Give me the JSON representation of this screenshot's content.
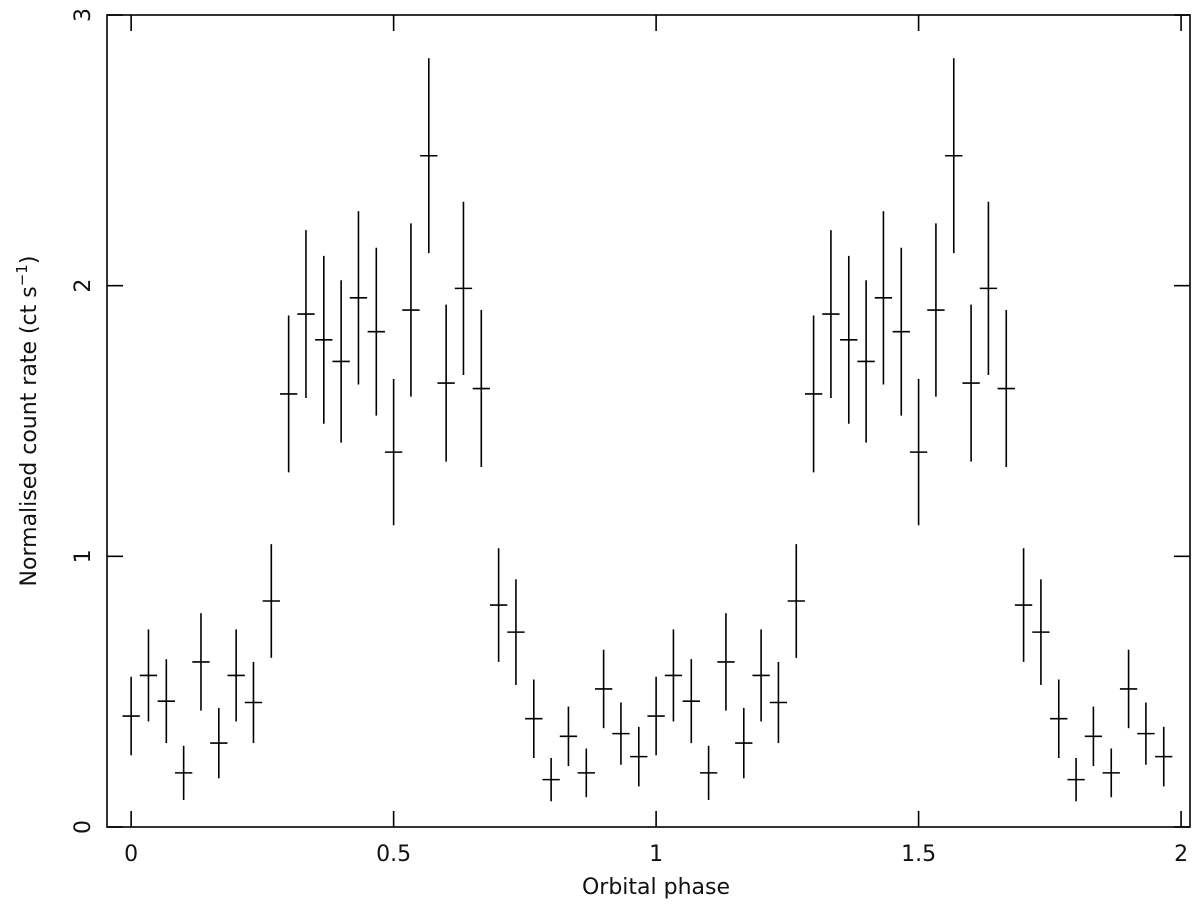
{
  "chart_data": {
    "type": "errorbar",
    "x_label": "Orbital phase",
    "y_label": {
      "text": "Normalised count rate (ct s",
      "superscript": "−1",
      "suffix": ")"
    },
    "xlim": [
      -0.046,
      2.017
    ],
    "ylim": [
      0,
      3
    ],
    "xticks": [
      0,
      0.5,
      1,
      1.5,
      2
    ],
    "yticks": [
      0,
      1,
      2,
      3
    ],
    "color": "#000000",
    "x": [
      0,
      0.033,
      0.067,
      0.1,
      0.133,
      0.167,
      0.2,
      0.233,
      0.267,
      0.3,
      0.333,
      0.367,
      0.4,
      0.433,
      0.467,
      0.5,
      0.533,
      0.567,
      0.6,
      0.633,
      0.667,
      0.7,
      0.733,
      0.767,
      0.8,
      0.833,
      0.867,
      0.9,
      0.933,
      0.967,
      1,
      1.033,
      1.067,
      1.1,
      1.133,
      1.167,
      1.2,
      1.233,
      1.267,
      1.3,
      1.333,
      1.367,
      1.4,
      1.433,
      1.467,
      1.5,
      1.533,
      1.567,
      1.6,
      1.633,
      1.667,
      1.7,
      1.733,
      1.767,
      1.8,
      1.833,
      1.867,
      1.9,
      1.933,
      1.967
    ],
    "values": [
      0.41,
      0.56,
      0.465,
      0.2,
      0.61,
      0.31,
      0.56,
      0.46,
      0.835,
      1.6,
      1.895,
      1.8,
      1.72,
      1.955,
      1.83,
      1.385,
      1.91,
      2.48,
      1.64,
      1.99,
      1.62,
      0.82,
      0.72,
      0.4,
      0.175,
      0.335,
      0.2,
      0.51,
      0.345,
      0.26,
      0.41,
      0.56,
      0.465,
      0.2,
      0.61,
      0.31,
      0.56,
      0.46,
      0.835,
      1.6,
      1.895,
      1.8,
      1.72,
      1.955,
      1.83,
      1.385,
      1.91,
      2.48,
      1.64,
      1.99,
      1.62,
      0.82,
      0.72,
      0.4,
      0.175,
      0.335,
      0.2,
      0.51,
      0.345,
      0.26
    ],
    "errors": [
      0.145,
      0.17,
      0.155,
      0.1,
      0.18,
      0.13,
      0.17,
      0.15,
      0.21,
      0.29,
      0.31,
      0.31,
      0.3,
      0.32,
      0.31,
      0.27,
      0.32,
      0.36,
      0.29,
      0.32,
      0.29,
      0.21,
      0.195,
      0.145,
      0.08,
      0.11,
      0.09,
      0.145,
      0.115,
      0.11,
      0.145,
      0.17,
      0.155,
      0.1,
      0.18,
      0.13,
      0.17,
      0.15,
      0.21,
      0.29,
      0.31,
      0.31,
      0.3,
      0.32,
      0.31,
      0.27,
      0.32,
      0.36,
      0.29,
      0.32,
      0.29,
      0.21,
      0.195,
      0.145,
      0.08,
      0.11,
      0.09,
      0.145,
      0.115,
      0.11
    ]
  }
}
